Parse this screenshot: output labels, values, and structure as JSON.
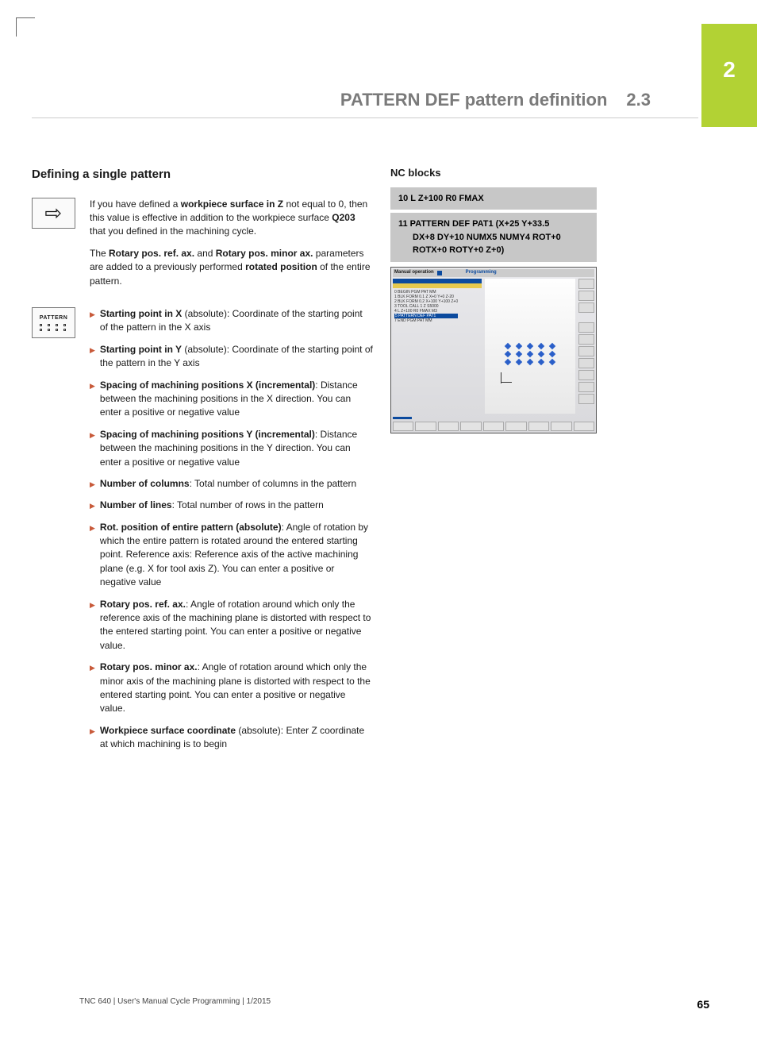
{
  "chapter_tab": "2",
  "header": {
    "title": "PATTERN DEF pattern definition",
    "num": "2.3"
  },
  "section_title": "Defining a single pattern",
  "note_paragraphs": [
    "If you have defined a <span class=\"bold\">workpiece surface in Z</span> not equal to 0, then this value is effective in addition to the workpiece surface <span class=\"bold\">Q203</span> that you defined in the machining cycle.",
    "The <span class=\"bold\">Rotary pos. ref. ax.</span> and <span class=\"bold\">Rotary pos. minor ax.</span> parameters are added to a previously performed <span class=\"bold\">rotated position</span> of the entire pattern."
  ],
  "pattern_icon_label": "PATTERN",
  "params": [
    {
      "bold": "Starting point in X",
      "rest": " (absolute): Coordinate of the starting point of the pattern in the X axis"
    },
    {
      "bold": "Starting point in Y",
      "rest": " (absolute): Coordinate of the starting point of the pattern in the Y axis"
    },
    {
      "bold": "Spacing of machining positions X (incremental)",
      "rest": ": Distance between the machining positions in the X direction. You can enter a positive or negative value"
    },
    {
      "bold": "Spacing of machining positions Y (incremental)",
      "rest": ": Distance between the machining positions in the Y direction. You can enter a positive or negative value"
    },
    {
      "bold": "Number of columns",
      "rest": ": Total number of columns in the pattern"
    },
    {
      "bold": "Number of lines",
      "rest": ": Total number of rows in the pattern"
    },
    {
      "bold": "Rot. position of entire pattern (absolute)",
      "rest": ": Angle of rotation by which the entire pattern is rotated around the entered starting point. Reference axis: Reference axis of the active machining plane (e.g. X for tool axis Z). You can enter a positive or negative value"
    },
    {
      "bold": "Rotary pos. ref. ax.",
      "rest": ": Angle of rotation around which only the reference axis of the machining plane is distorted with respect to the entered starting point. You can enter a positive or negative value."
    },
    {
      "bold": "Rotary pos. minor ax.",
      "rest": ": Angle of rotation around which only the minor axis of the machining plane is distorted with respect to the entered starting point. You can enter a positive or negative value."
    },
    {
      "bold": "Workpiece surface coordinate",
      "rest": " (absolute): Enter Z coordinate at which machining is to begin"
    }
  ],
  "nc": {
    "heading": "NC blocks",
    "block1": "10 L Z+100 R0 FMAX",
    "block2_a": "11 PATTERN DEF PAT1 (X+25 Y+33.5",
    "block2_b": "DX+8 DY+10 NUMX5 NUMY4 ROT+0",
    "block2_c": "ROTX+0 ROTY+0 Z+0)"
  },
  "sim": {
    "mode_left": "Manual operation",
    "mode_right": "Programming",
    "sub": "Programming",
    "code_lines": [
      "0  BEGIN PGM PAT MM",
      "1  BLK FORM 0.1 Z X+0 Y+0 Z-20",
      "2  BLK FORM 0.2 X+100 Y+100 Z+0",
      "3  TOOL CALL 1 Z S5000",
      "4  L Z+100 R0 FMAX M3"
    ],
    "code_sel": "5  PATTERN DEF PAT1",
    "code_after": "7  END PGM PAT MM",
    "grid": {
      "cols": 5,
      "rows": 3,
      "dot_color": "#2a5fc9"
    }
  },
  "footer": {
    "left": "TNC 640 | User's Manual Cycle Programming | 1/2015",
    "page": "65"
  },
  "colors": {
    "accent_green": "#b2d234",
    "bullet": "#c85a3a",
    "nc_bg": "#c7c7c7",
    "header_grey": "#7a7a7a"
  }
}
